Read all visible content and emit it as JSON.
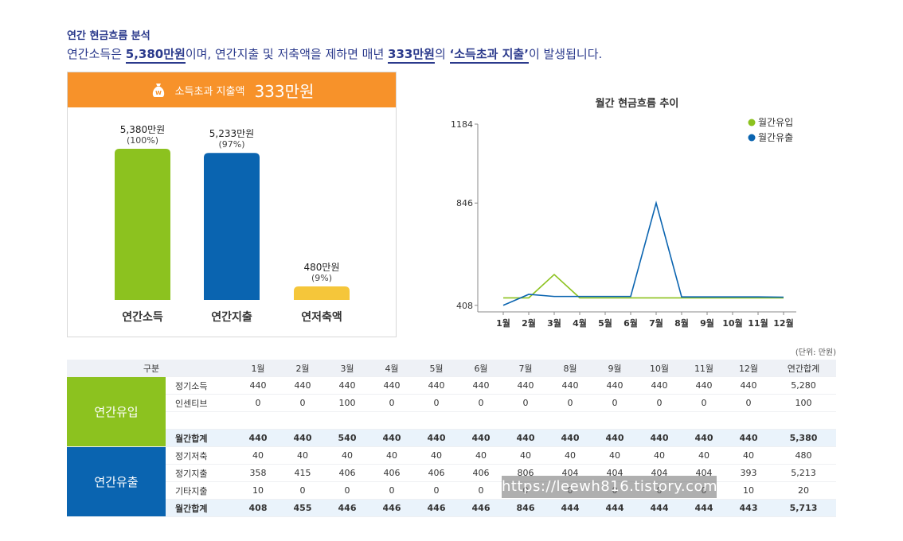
{
  "header": {
    "section_title": "연간 현금흐름 분석",
    "summary_parts": [
      "연간소득은 ",
      "5,380만원",
      "이며, 연간지출 및 저축액을 제하면 매년 ",
      "333만원",
      "의 ",
      "‘소득초과 지출’",
      "이 발생됩니다."
    ]
  },
  "card": {
    "label": "소득초과 지출액",
    "amount": "333만원",
    "colors": {
      "head": "#f7922a"
    }
  },
  "chart_data": [
    {
      "type": "bar",
      "categories": [
        "연간소득",
        "연간지출",
        "연저축액"
      ],
      "values": [
        5380,
        5233,
        480
      ],
      "value_labels": [
        "5,380만원",
        "5,233만원",
        "480만원"
      ],
      "percent_labels": [
        "(100%)",
        "(97%)",
        "(9%)"
      ],
      "colors": [
        "#8cc21f",
        "#0a64b0",
        "#f5c63a"
      ],
      "ylim": [
        0,
        5380
      ]
    },
    {
      "type": "line",
      "title": "월간 현금흐름 추이",
      "x": [
        "1월",
        "2월",
        "3월",
        "4월",
        "5월",
        "6월",
        "7월",
        "8월",
        "9월",
        "10월",
        "11월",
        "12월"
      ],
      "yticks": [
        408,
        846,
        1184
      ],
      "ylim": [
        380,
        1184
      ],
      "series": [
        {
          "name": "월간유입",
          "color": "#8cc21f",
          "values": [
            440,
            440,
            540,
            440,
            440,
            440,
            440,
            440,
            440,
            440,
            440,
            440
          ]
        },
        {
          "name": "월간유출",
          "color": "#0a64b0",
          "values": [
            408,
            455,
            446,
            446,
            446,
            446,
            846,
            444,
            444,
            444,
            444,
            443
          ]
        }
      ],
      "legend": "top-right",
      "grid": false
    }
  ],
  "table": {
    "unit_note": "(단위: 만원)",
    "headers": [
      "구분",
      "1월",
      "2월",
      "3월",
      "4월",
      "5월",
      "6월",
      "7월",
      "8월",
      "9월",
      "10월",
      "11월",
      "12월",
      "연간합계"
    ],
    "inflow": {
      "group": "연간유입",
      "rows": [
        [
          "정기소득",
          "440",
          "440",
          "440",
          "440",
          "440",
          "440",
          "440",
          "440",
          "440",
          "440",
          "440",
          "440",
          "5,280"
        ],
        [
          "인센티브",
          "0",
          "0",
          "100",
          "0",
          "0",
          "0",
          "0",
          "0",
          "0",
          "0",
          "0",
          "0",
          "100"
        ]
      ],
      "total": [
        "월간합계",
        "440",
        "440",
        "540",
        "440",
        "440",
        "440",
        "440",
        "440",
        "440",
        "440",
        "440",
        "440",
        "5,380"
      ]
    },
    "outflow": {
      "group": "연간유출",
      "rows": [
        [
          "정기저축",
          "40",
          "40",
          "40",
          "40",
          "40",
          "40",
          "40",
          "40",
          "40",
          "40",
          "40",
          "40",
          "480"
        ],
        [
          "정기지출",
          "358",
          "415",
          "406",
          "406",
          "406",
          "406",
          "806",
          "404",
          "404",
          "404",
          "404",
          "393",
          "5,213"
        ],
        [
          "기타지출",
          "10",
          "0",
          "0",
          "0",
          "0",
          "0",
          "0",
          "0",
          "0",
          "0",
          "0",
          "10",
          "20"
        ]
      ],
      "total": [
        "월간합계",
        "408",
        "455",
        "446",
        "446",
        "446",
        "446",
        "846",
        "444",
        "444",
        "444",
        "444",
        "443",
        "5,713"
      ]
    }
  },
  "watermark": "https://leewh816.tistory.com"
}
